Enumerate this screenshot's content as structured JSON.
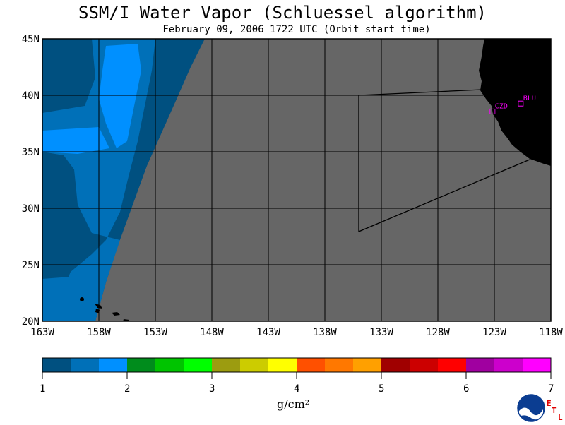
{
  "title": "SSM/I Water Vapor (Schluessel algorithm)",
  "subtitle": "February 09, 2006  1722 UTC  (Orbit start time)",
  "map": {
    "lat_labels": [
      "45N",
      "40N",
      "35N",
      "30N",
      "25N",
      "20N"
    ],
    "lon_labels": [
      "163W",
      "158W",
      "153W",
      "148W",
      "143W",
      "138W",
      "133W",
      "128W",
      "123W",
      "118W"
    ],
    "lat_range": [
      20,
      45
    ],
    "lon_range": [
      -163,
      -118
    ],
    "stations": [
      {
        "name": "CZD",
        "lat": 38.6,
        "lon": -123.2
      },
      {
        "name": "BLU",
        "lat": 39.3,
        "lon": -120.7
      }
    ],
    "colors": {
      "nodata": "#666666",
      "land": "#000000",
      "grid": "#000000",
      "station": "#ff00ff"
    }
  },
  "colorbar": {
    "unit_label": "g/cm²",
    "ticks": [
      "1",
      "2",
      "3",
      "4",
      "5",
      "6",
      "7"
    ],
    "colors": [
      "#005080",
      "#0070b8",
      "#0090ff",
      "#008c1c",
      "#00c400",
      "#00ff00",
      "#9c9c10",
      "#cccc00",
      "#ffff00",
      "#ff5000",
      "#ff7800",
      "#ffa000",
      "#a00000",
      "#cc0000",
      "#ff0000",
      "#a000a0",
      "#cc00cc",
      "#ff00ff"
    ]
  },
  "logo": {
    "text": "NOAA",
    "etl": [
      "E",
      "T",
      "L"
    ]
  }
}
